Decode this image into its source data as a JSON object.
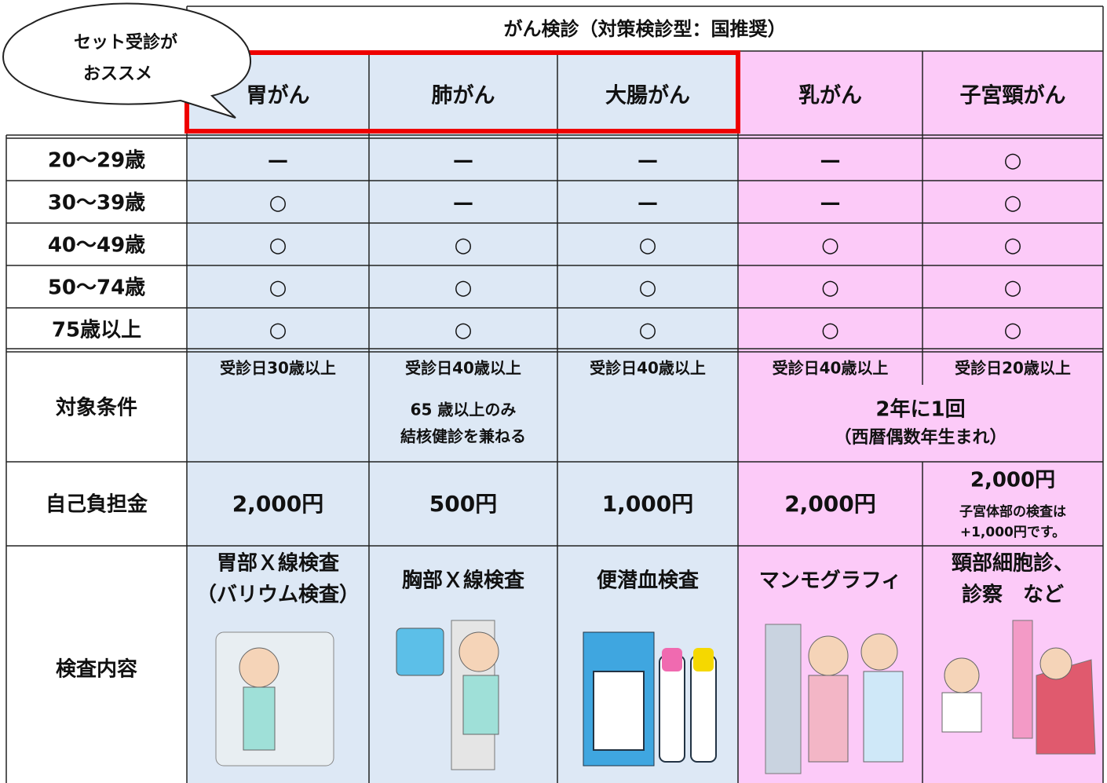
{
  "callout": [
    "セット受診が",
    "おススメ"
  ],
  "table": {
    "title": "がん検診（対策検診型：国推奨）",
    "columns": [
      "胃がん",
      "肺がん",
      "大腸がん",
      "乳がん",
      "子宮頸がん"
    ],
    "age_rows": [
      {
        "label": "20～29歳",
        "cells": [
          "—",
          "—",
          "—",
          "—",
          "○"
        ]
      },
      {
        "label": "30～39歳",
        "cells": [
          "○",
          "—",
          "—",
          "—",
          "○"
        ]
      },
      {
        "label": "40～49歳",
        "cells": [
          "○",
          "○",
          "○",
          "○",
          "○"
        ]
      },
      {
        "label": "50～74歳",
        "cells": [
          "○",
          "○",
          "○",
          "○",
          "○"
        ]
      },
      {
        "label": "75歳以上",
        "cells": [
          "○",
          "○",
          "○",
          "○",
          "○"
        ]
      }
    ],
    "conditions": {
      "label": "対象条件",
      "cells": [
        "受診日30歳以上",
        "受診日40歳以上",
        "受診日40歳以上",
        "受診日40歳以上",
        "受診日20歳以上"
      ],
      "lung_note": [
        "65 歳以上のみ",
        "結核健診を兼ねる"
      ],
      "shared": [
        "2年に1回",
        "（西暦偶数年生まれ）"
      ]
    },
    "fee": {
      "label": "自己負担金",
      "cells": [
        "2,000円",
        "500円",
        "1,000円",
        "2,000円",
        "2,000円"
      ],
      "note": [
        "子宮体部の検査は",
        "+1,000円です。"
      ]
    },
    "exam": {
      "label": "検査内容",
      "cells": [
        [
          "胃部Ｘ線検査",
          "（バリウム検査）"
        ],
        [
          "胸部Ｘ線検査"
        ],
        [
          "便潜血検査"
        ],
        [
          "マンモグラフィ"
        ],
        [
          "頸部細胞診、",
          "診察　など"
        ]
      ]
    }
  }
}
